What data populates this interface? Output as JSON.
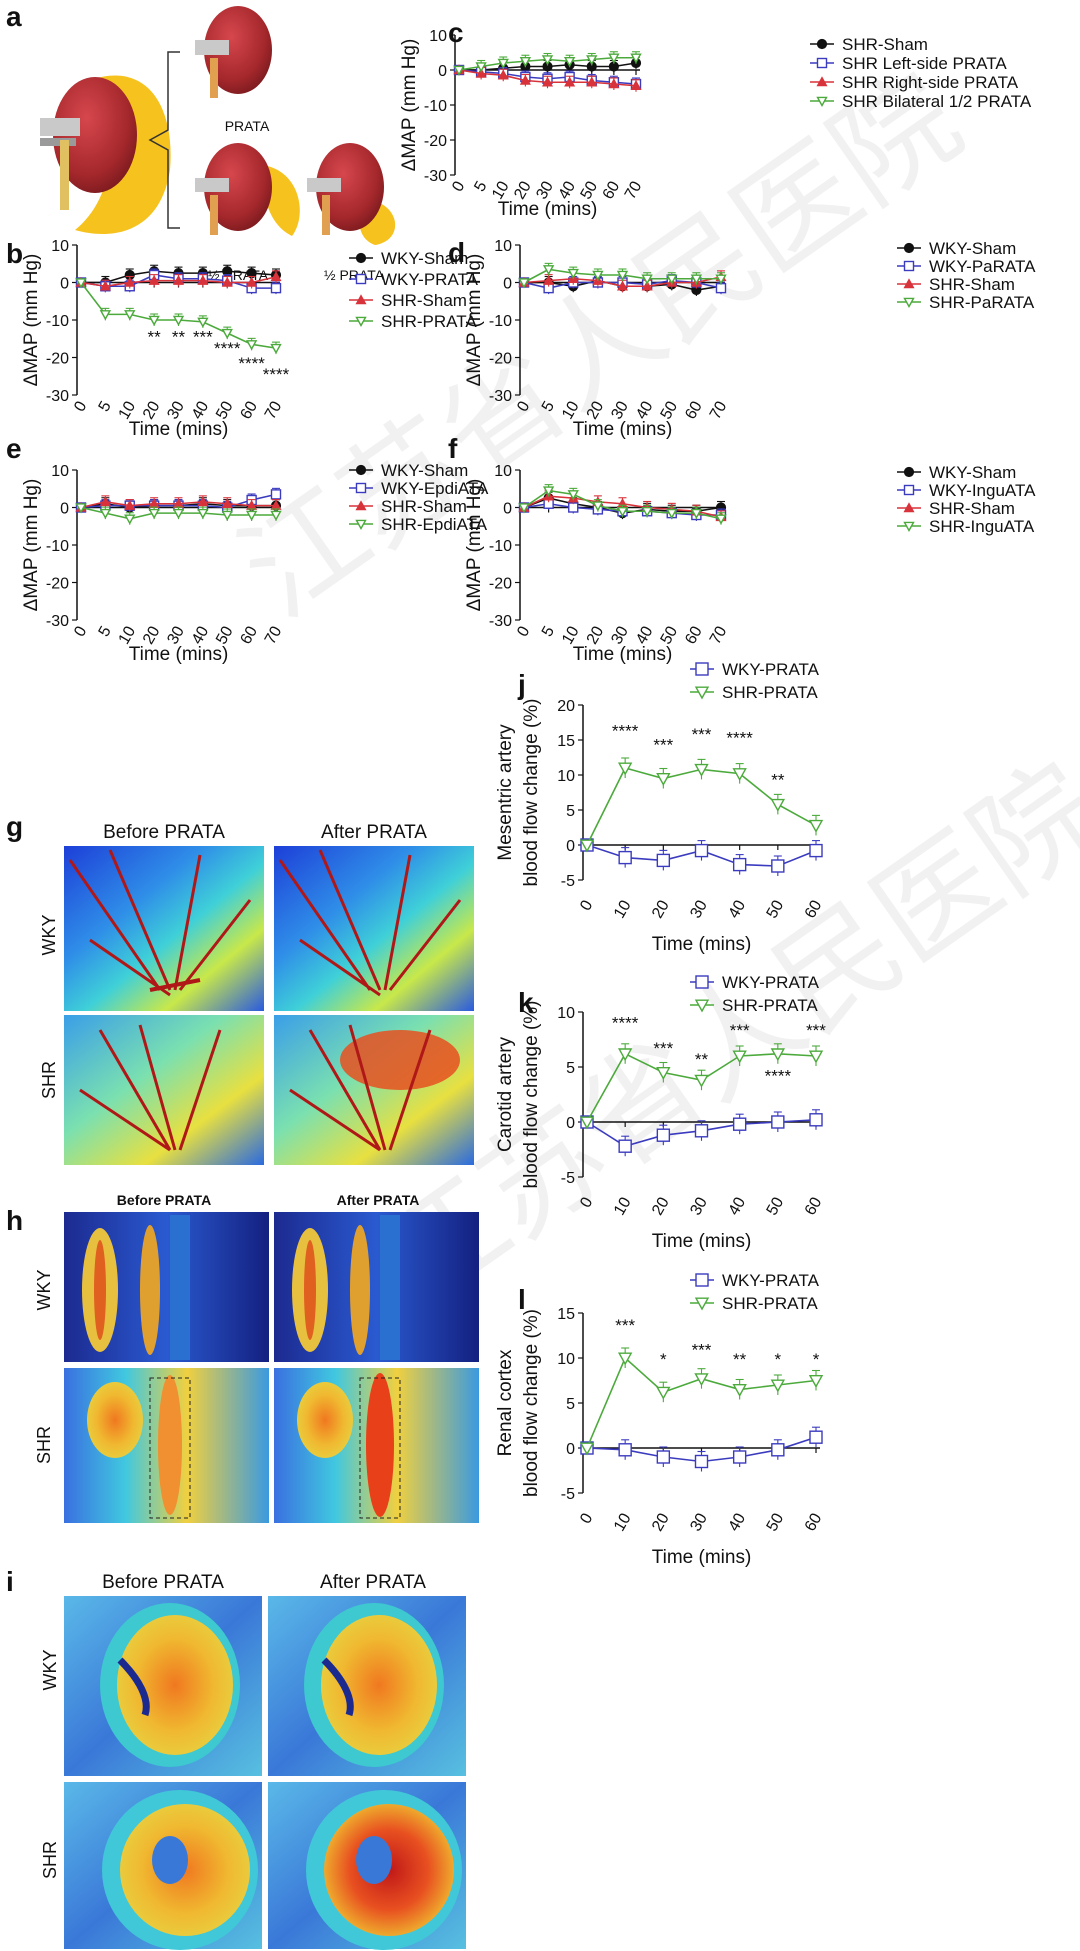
{
  "colors": {
    "black": "#111111",
    "blue": "#3b3bbf",
    "red": "#d8323a",
    "green": "#4caa3c",
    "kidney": "#a5282c",
    "fat": "#f6c21e"
  },
  "panel_a": {
    "label": "a",
    "prata": "PRATA",
    "half1": "½ PRATA",
    "half2": "½ PRATA"
  },
  "watermark": "江苏省人民医院",
  "images": {
    "g": {
      "label": "g",
      "col1": "Before PRATA",
      "col2": "After PRATA",
      "row1": "WKY",
      "row2": "SHR"
    },
    "h": {
      "label": "h",
      "col1": "Before PRATA",
      "col2": "After PRATA",
      "row1": "WKY",
      "row2": "SHR"
    },
    "i": {
      "label": "i",
      "col1": "Before PRATA",
      "col2": "After PRATA",
      "row1": "WKY",
      "row2": "SHR"
    }
  },
  "chart_data": [
    {
      "id": "c",
      "type": "line",
      "label": "c",
      "ylabel": "ΔMAP (mm Hg)",
      "xlabel": "Time (mins)",
      "x": [
        0,
        5,
        10,
        20,
        30,
        40,
        50,
        60,
        70
      ],
      "ylim": [
        -30,
        10
      ],
      "yticks": [
        10,
        0,
        -10,
        -20,
        -30
      ],
      "series": [
        {
          "name": "SHR-Sham",
          "marker": "circle",
          "color": "#111111",
          "values": [
            0,
            0,
            0.5,
            1,
            1,
            1.5,
            1,
            1,
            2
          ]
        },
        {
          "name": "SHR Left-side PRATA",
          "marker": "square",
          "color": "#3b3bbf",
          "values": [
            0,
            -0.5,
            -1,
            -2,
            -2.5,
            -2,
            -3,
            -3.5,
            -4
          ]
        },
        {
          "name": "SHR Right-side PRATA",
          "marker": "triangle-up",
          "color": "#d8323a",
          "values": [
            0,
            -1,
            -1.5,
            -3,
            -3.5,
            -3.5,
            -3.5,
            -4,
            -4.5
          ]
        },
        {
          "name": "SHR Bilateral 1/2 PRATA",
          "marker": "triangle-down",
          "color": "#4caa3c",
          "values": [
            0,
            1,
            2,
            2.5,
            3,
            2.5,
            3,
            3.5,
            3.5
          ]
        }
      ],
      "annotations": []
    },
    {
      "id": "b",
      "type": "line",
      "label": "b",
      "ylabel": "ΔMAP (mm Hg)",
      "xlabel": "Time (mins)",
      "x": [
        0,
        5,
        10,
        20,
        30,
        40,
        50,
        60,
        70
      ],
      "ylim": [
        -30,
        10
      ],
      "yticks": [
        10,
        0,
        -10,
        -20,
        -30
      ],
      "series": [
        {
          "name": "WKY-Sham",
          "marker": "circle",
          "color": "#111111",
          "values": [
            0,
            0,
            2,
            3,
            2.5,
            2.5,
            3,
            2.5,
            2
          ]
        },
        {
          "name": "WKY-PRATA",
          "marker": "square",
          "color": "#3b3bbf",
          "values": [
            0,
            -1,
            -1,
            2,
            1,
            1,
            0.5,
            -1.5,
            -1.5
          ]
        },
        {
          "name": "SHR-Sham",
          "marker": "triangle-up",
          "color": "#d8323a",
          "values": [
            0,
            -1,
            0,
            0.5,
            0.5,
            0.5,
            0,
            0,
            1.5
          ]
        },
        {
          "name": "SHR-PRATA",
          "marker": "triangle-down",
          "color": "#4caa3c",
          "values": [
            0,
            -8.5,
            -8.5,
            -10,
            -10,
            -10.5,
            -13.5,
            -16.5,
            -17.5
          ]
        }
      ],
      "annotations": [
        {
          "x": 20,
          "text": "**",
          "y": -16
        },
        {
          "x": 30,
          "text": "**",
          "y": -16
        },
        {
          "x": 40,
          "text": "***",
          "y": -16
        },
        {
          "x": 50,
          "text": "****",
          "y": -19
        },
        {
          "x": 60,
          "text": "****",
          "y": -23
        },
        {
          "x": 70,
          "text": "****",
          "y": -26
        }
      ]
    },
    {
      "id": "d",
      "type": "line",
      "label": "d",
      "ylabel": "ΔMAP (mm Hg)",
      "xlabel": "Time (mins)",
      "x": [
        0,
        5,
        10,
        20,
        30,
        40,
        50,
        60,
        70
      ],
      "ylim": [
        -30,
        10
      ],
      "yticks": [
        10,
        0,
        -10,
        -20,
        -30
      ],
      "series": [
        {
          "name": "WKY-Sham",
          "marker": "circle",
          "color": "#111111",
          "values": [
            0,
            0,
            -1,
            0.5,
            -1,
            -1,
            -0.5,
            -2,
            -1
          ]
        },
        {
          "name": "WKY-PaRATA",
          "marker": "square",
          "color": "#3b3bbf",
          "values": [
            0,
            -1.5,
            0,
            0,
            0,
            -0.5,
            0.5,
            0,
            -1.5
          ]
        },
        {
          "name": "SHR-Sham",
          "marker": "triangle-up",
          "color": "#d8323a",
          "values": [
            0,
            0.5,
            1,
            0.5,
            -1,
            -1,
            0,
            0,
            1.5
          ]
        },
        {
          "name": "SHR-PaRATA",
          "marker": "triangle-down",
          "color": "#4caa3c",
          "values": [
            0,
            3.5,
            2.5,
            2,
            2,
            1,
            1,
            1,
            1
          ]
        }
      ],
      "annotations": []
    },
    {
      "id": "e",
      "type": "line",
      "label": "e",
      "ylabel": "ΔMAP (mm Hg)",
      "xlabel": "Time (mins)",
      "x": [
        0,
        5,
        10,
        20,
        30,
        40,
        50,
        60,
        70
      ],
      "ylim": [
        -30,
        10
      ],
      "yticks": [
        10,
        0,
        -10,
        -20,
        -30
      ],
      "series": [
        {
          "name": "WKY-Sham",
          "marker": "circle",
          "color": "#111111",
          "values": [
            0,
            1,
            0,
            0.5,
            0.5,
            1,
            0.5,
            0.5,
            0.5
          ]
        },
        {
          "name": "WKY-EpdiATA",
          "marker": "square",
          "color": "#3b3bbf",
          "values": [
            0,
            0.5,
            0.5,
            0.5,
            0.5,
            0.5,
            0,
            2,
            3.5
          ]
        },
        {
          "name": "SHR-Sham",
          "marker": "triangle-up",
          "color": "#d8323a",
          "values": [
            0,
            1.5,
            0.5,
            1,
            1,
            1.5,
            1,
            0.5,
            0.5
          ]
        },
        {
          "name": "SHR-EpdiATA",
          "marker": "triangle-down",
          "color": "#4caa3c",
          "values": [
            0,
            -1.5,
            -3,
            -1.5,
            -1.5,
            -1.5,
            -2,
            -2,
            -2
          ]
        }
      ],
      "annotations": []
    },
    {
      "id": "f",
      "type": "line",
      "label": "f",
      "ylabel": "ΔMAP  (mm Hg)",
      "xlabel": "Time (mins)",
      "x": [
        0,
        5,
        10,
        20,
        30,
        40,
        50,
        60,
        70
      ],
      "ylim": [
        -30,
        10
      ],
      "yticks": [
        10,
        0,
        -10,
        -20,
        -30
      ],
      "series": [
        {
          "name": "WKY-Sham",
          "marker": "circle",
          "color": "#111111",
          "values": [
            0,
            2.5,
            1,
            0,
            -1.5,
            -0.5,
            -1,
            -1,
            0
          ]
        },
        {
          "name": "WKY-InguATA",
          "marker": "square",
          "color": "#3b3bbf",
          "values": [
            0,
            1,
            0,
            -0.5,
            -1,
            -1,
            -1.5,
            -2,
            -2
          ]
        },
        {
          "name": "SHR-Sham",
          "marker": "triangle-up",
          "color": "#d8323a",
          "values": [
            0,
            3,
            2.5,
            1.5,
            1,
            0,
            -0.5,
            -1,
            -2.5
          ]
        },
        {
          "name": "SHR-InguATA",
          "marker": "triangle-down",
          "color": "#4caa3c",
          "values": [
            0,
            4.5,
            3.5,
            0.5,
            -1,
            -1,
            -1.5,
            -1.5,
            -3
          ]
        }
      ],
      "annotations": []
    },
    {
      "id": "j",
      "type": "line",
      "label": "j",
      "ylabel": "Mesentric artery blood flow change (%)",
      "ylabel_lines": [
        "Mesentric artery",
        "blood flow change (%)"
      ],
      "xlabel": "Time (mins)",
      "x": [
        0,
        10,
        20,
        30,
        40,
        50,
        60
      ],
      "ylim": [
        -5,
        20
      ],
      "yticks": [
        20,
        15,
        10,
        5,
        0,
        -5
      ],
      "series": [
        {
          "name": "WKY-PRATA",
          "marker": "square",
          "color": "#3b3bbf",
          "values": [
            0,
            -1.8,
            -2.2,
            -0.8,
            -2.8,
            -3,
            -0.8
          ]
        },
        {
          "name": "SHR-PRATA",
          "marker": "triangle-down",
          "color": "#4caa3c",
          "values": [
            0,
            11,
            9.5,
            10.8,
            10.2,
            5.8,
            2.8
          ]
        }
      ],
      "annotations": [
        {
          "x": 10,
          "text": "****",
          "y": 15.5
        },
        {
          "x": 20,
          "text": "***",
          "y": 13.5
        },
        {
          "x": 30,
          "text": "***",
          "y": 15
        },
        {
          "x": 40,
          "text": "****",
          "y": 14.5
        },
        {
          "x": 50,
          "text": "**",
          "y": 8.5
        }
      ]
    },
    {
      "id": "k",
      "type": "line",
      "label": "k",
      "ylabel": "Carotid artery blood flow change (%)",
      "ylabel_lines": [
        "Carotid artery",
        "blood flow change (%)"
      ],
      "xlabel": "Time (mins)",
      "x": [
        0,
        10,
        20,
        30,
        40,
        50,
        60
      ],
      "ylim": [
        -5,
        10
      ],
      "yticks": [
        10,
        5,
        0,
        -5
      ],
      "series": [
        {
          "name": "WKY-PRATA",
          "marker": "square",
          "color": "#3b3bbf",
          "values": [
            0,
            -2.2,
            -1.2,
            -0.8,
            -0.2,
            0,
            0.2
          ]
        },
        {
          "name": "SHR-PRATA",
          "marker": "triangle-down",
          "color": "#4caa3c",
          "values": [
            0,
            6.2,
            4.5,
            3.8,
            6,
            6.2,
            6
          ]
        }
      ],
      "annotations": [
        {
          "x": 10,
          "text": "****",
          "y": 8.5
        },
        {
          "x": 20,
          "text": "***",
          "y": 6.2
        },
        {
          "x": 30,
          "text": "**",
          "y": 5.2
        },
        {
          "x": 40,
          "text": "***",
          "y": 7.8
        },
        {
          "x": 50,
          "text": "****",
          "y": 3.7
        },
        {
          "x": 60,
          "text": "***",
          "y": 7.8
        }
      ]
    },
    {
      "id": "l",
      "type": "line",
      "label": "l",
      "ylabel": "Renal cortex blood flow change (%)",
      "ylabel_lines": [
        "Renal cortex",
        "blood flow change (%)"
      ],
      "xlabel": "Time (mins)",
      "x": [
        0,
        10,
        20,
        30,
        40,
        50,
        60
      ],
      "ylim": [
        -5,
        15
      ],
      "yticks": [
        15,
        10,
        5,
        0,
        -5
      ],
      "series": [
        {
          "name": "WKY-PRATA",
          "marker": "square",
          "color": "#3b3bbf",
          "values": [
            0,
            -0.2,
            -1,
            -1.5,
            -1,
            -0.2,
            1.2
          ]
        },
        {
          "name": "SHR-PRATA",
          "marker": "triangle-down",
          "color": "#4caa3c",
          "values": [
            0,
            10,
            6.2,
            7.7,
            6.5,
            7,
            7.5
          ]
        }
      ],
      "annotations": [
        {
          "x": 10,
          "text": "***",
          "y": 13
        },
        {
          "x": 20,
          "text": "*",
          "y": 9.2
        },
        {
          "x": 30,
          "text": "***",
          "y": 10.3
        },
        {
          "x": 40,
          "text": "**",
          "y": 9.2
        },
        {
          "x": 50,
          "text": "*",
          "y": 9.2
        },
        {
          "x": 60,
          "text": "*",
          "y": 9.2
        }
      ]
    }
  ]
}
